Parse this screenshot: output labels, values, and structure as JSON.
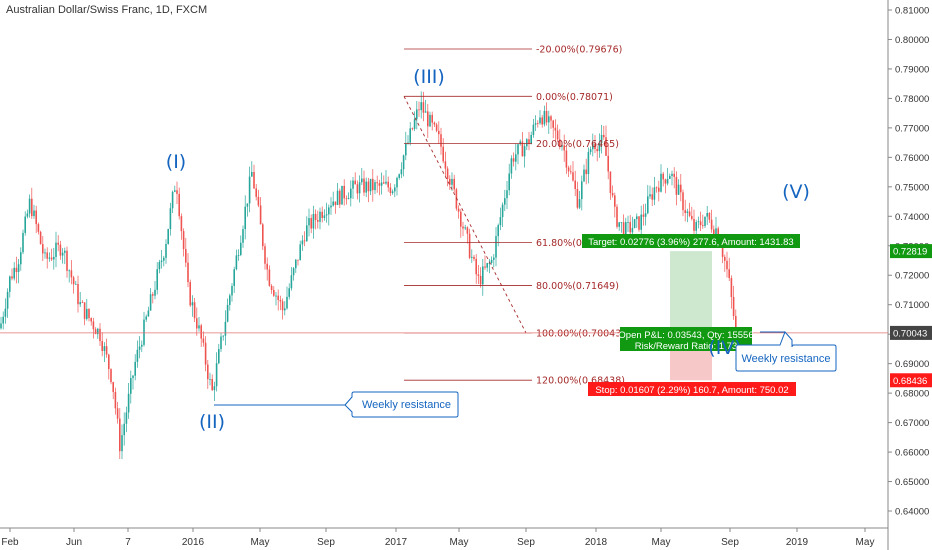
{
  "title": "Australian Dollar/Swiss Franc, 1D, FXCM",
  "chart_data": {
    "type": "candlestick",
    "symbol": "AUDCHF",
    "timeframe": "1D",
    "broker": "FXCM",
    "ylim": [
      0.6355,
      0.8115
    ],
    "y_ticks": [
      "0.81000",
      "0.80000",
      "0.79000",
      "0.78000",
      "0.77000",
      "0.76000",
      "0.75000",
      "0.74000",
      "0.73000",
      "0.72000",
      "0.71000",
      "0.70000",
      "0.69000",
      "0.68000",
      "0.67000",
      "0.66000",
      "0.65000",
      "0.64000"
    ],
    "x_ticks": [
      "Feb",
      "Jun",
      "7",
      "Sep",
      "2016",
      "May",
      "Sep",
      "2017",
      "May",
      "Sep",
      "2018",
      "May",
      "Sep",
      "2019",
      "May"
    ],
    "price_path": [
      [
        0,
        0.702
      ],
      [
        10,
        0.719
      ],
      [
        18,
        0.725
      ],
      [
        30,
        0.745
      ],
      [
        45,
        0.725
      ],
      [
        62,
        0.73
      ],
      [
        80,
        0.71
      ],
      [
        100,
        0.7
      ],
      [
        112,
        0.685
      ],
      [
        120,
        0.662
      ],
      [
        135,
        0.69
      ],
      [
        150,
        0.71
      ],
      [
        165,
        0.73
      ],
      [
        176,
        0.753
      ],
      [
        188,
        0.715
      ],
      [
        200,
        0.7
      ],
      [
        212,
        0.68
      ],
      [
        228,
        0.71
      ],
      [
        252,
        0.755
      ],
      [
        268,
        0.72
      ],
      [
        283,
        0.708
      ],
      [
        305,
        0.735
      ],
      [
        330,
        0.745
      ],
      [
        356,
        0.75
      ],
      [
        375,
        0.75
      ],
      [
        393,
        0.75
      ],
      [
        408,
        0.765
      ],
      [
        420,
        0.778
      ],
      [
        440,
        0.765
      ],
      [
        462,
        0.738
      ],
      [
        478,
        0.718
      ],
      [
        492,
        0.725
      ],
      [
        512,
        0.76
      ],
      [
        528,
        0.765
      ],
      [
        540,
        0.775
      ],
      [
        562,
        0.765
      ],
      [
        578,
        0.745
      ],
      [
        592,
        0.765
      ],
      [
        604,
        0.765
      ],
      [
        615,
        0.74
      ],
      [
        625,
        0.735
      ],
      [
        640,
        0.738
      ],
      [
        655,
        0.75
      ],
      [
        670,
        0.755
      ],
      [
        682,
        0.745
      ],
      [
        695,
        0.735
      ],
      [
        705,
        0.74
      ],
      [
        718,
        0.735
      ],
      [
        728,
        0.72
      ],
      [
        736,
        0.7005
      ]
    ],
    "fibonacci": [
      {
        "label": "-20.00%(0.79676)",
        "value": 0.79676
      },
      {
        "label": "0.00%(0.78071)",
        "value": 0.78071
      },
      {
        "label": "20.00%(0.76465)",
        "value": 0.76465
      },
      {
        "label": "61.80%(0.7",
        "value": 0.73107
      },
      {
        "label": "80.00%(0.71649)",
        "value": 0.71649
      },
      {
        "label": "100.00%(0.70043)",
        "value": 0.70043
      },
      {
        "label": "120.00%(0.68438)",
        "value": 0.68438
      }
    ],
    "waves": [
      "(I)",
      "(II)",
      "(III)",
      "(IV)",
      "(V)"
    ],
    "position": {
      "target": "Target: 0.02776 (3.96%) 277.6, Amount: 1431.83",
      "open_pl": "Open P&L: 0.03543, Qty: 15556",
      "risk_reward": "Risk/Reward Ratio: 1.73",
      "stop": "Stop: 0.01607 (2.29%) 160.7, Amount: 750.02",
      "target_price": "0.72819",
      "current_price": "0.70043",
      "stop_price": "0.68436"
    },
    "annotations": [
      "Weekly resistance",
      "Weekly resistance"
    ],
    "colors": {
      "up": "#26a69a",
      "down": "#ef5350",
      "fib": "#a52a2a",
      "wave": "#1565c0",
      "target": "#119911",
      "stop": "#ff1a1a"
    }
  }
}
